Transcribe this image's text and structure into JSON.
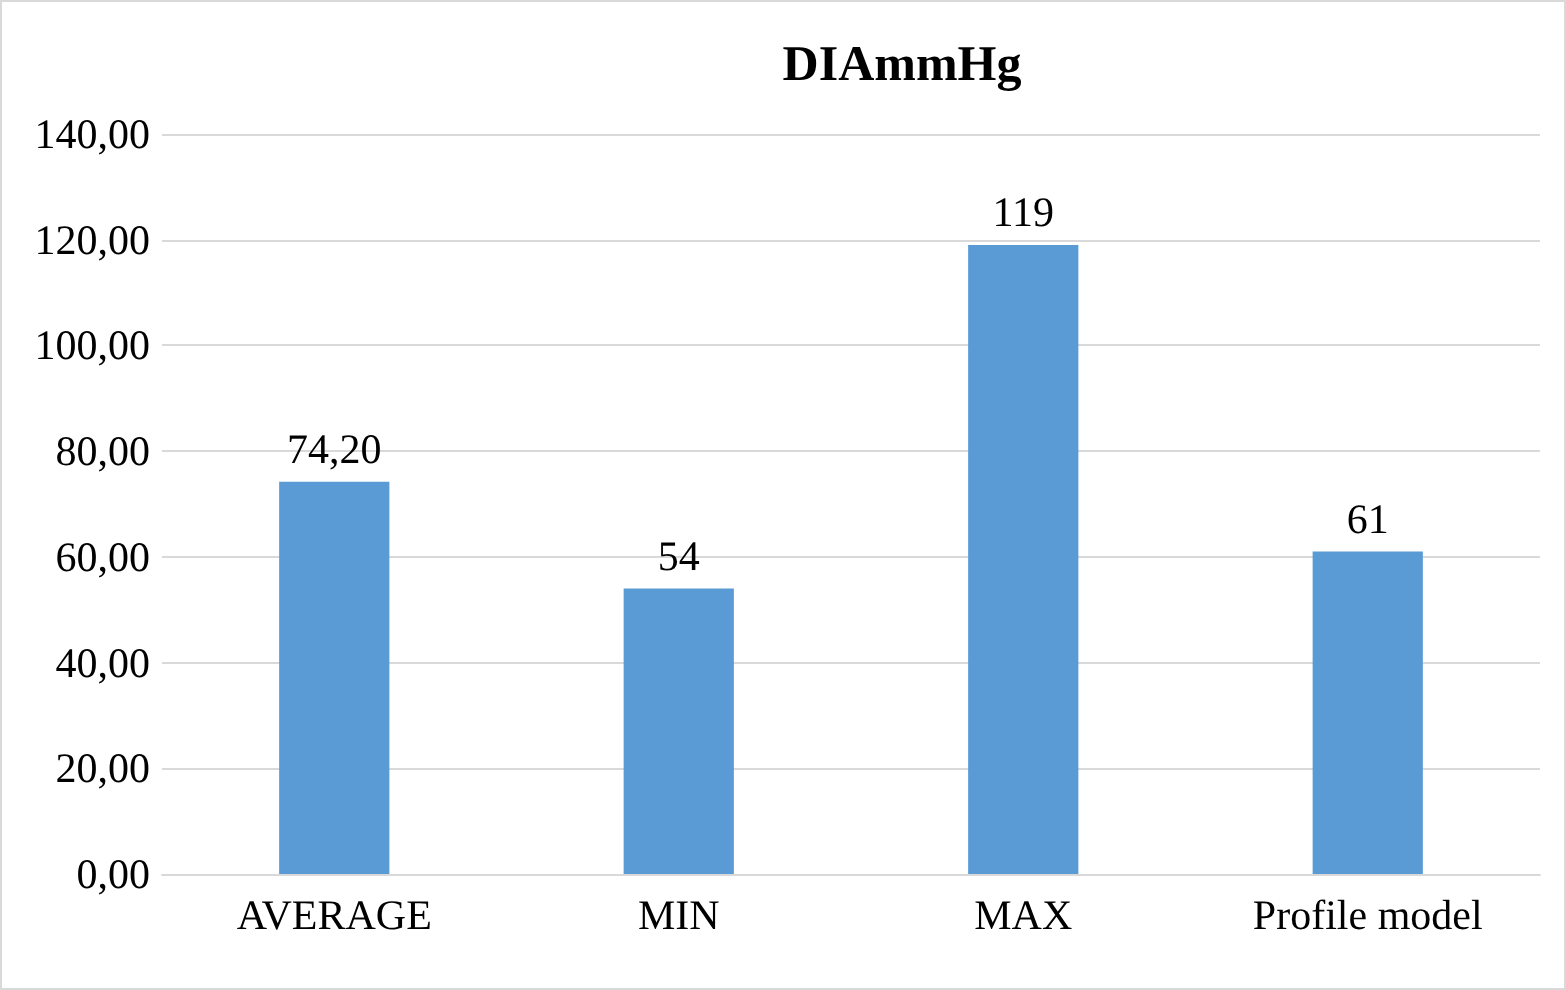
{
  "chart_data": {
    "type": "bar",
    "title": "DIAmmHg",
    "categories": [
      "AVERAGE",
      "MIN",
      "MAX",
      "Profile model"
    ],
    "values": [
      74.2,
      54,
      119,
      61
    ],
    "value_labels": [
      "74,20",
      "54",
      "119",
      "61"
    ],
    "color": "#5b9bd5",
    "ylim": [
      0,
      140
    ],
    "yticks": [
      {
        "value": 0,
        "label": "0,00"
      },
      {
        "value": 20,
        "label": "20,00"
      },
      {
        "value": 40,
        "label": "40,00"
      },
      {
        "value": 60,
        "label": "60,00"
      },
      {
        "value": 80,
        "label": "80,00"
      },
      {
        "value": 100,
        "label": "100,00"
      },
      {
        "value": 120,
        "label": "120,00"
      },
      {
        "value": 140,
        "label": "140,00"
      }
    ],
    "grid": "y"
  }
}
